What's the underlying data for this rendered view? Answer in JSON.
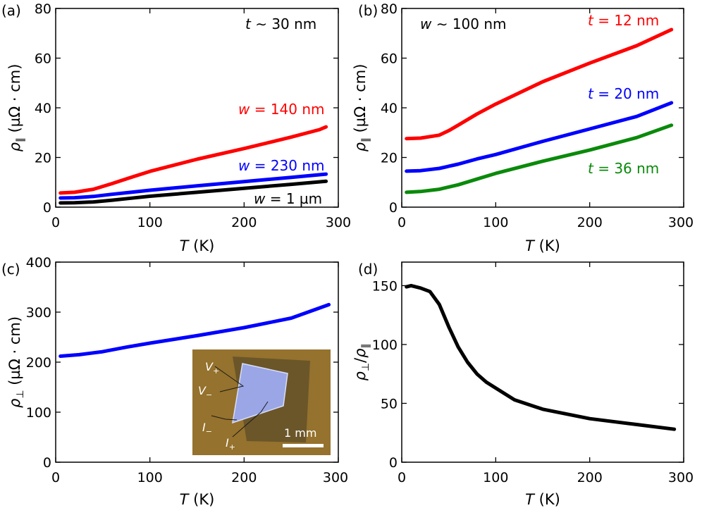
{
  "chart_data": [
    {
      "panel": "(a)",
      "type": "line",
      "annotation": [
        "t",
        " ∼ 30 nm"
      ],
      "xlabel": [
        "T",
        " (K)"
      ],
      "ylabel": [
        "ρ",
        "∥",
        " (µΩ · cm)"
      ],
      "xlim": [
        0,
        300
      ],
      "ylim": [
        0,
        80
      ],
      "xticks": [
        "0",
        "100",
        "200",
        "300"
      ],
      "yticks": [
        "0",
        "20",
        "40",
        "60",
        "80"
      ],
      "series": [
        {
          "label": [
            "w",
            " = 140 nm"
          ],
          "color": "#ff0000",
          "x": [
            5,
            20,
            40,
            60,
            80,
            100,
            150,
            200,
            250,
            280,
            287
          ],
          "y": [
            5.7,
            6.0,
            7.2,
            9.5,
            12.0,
            14.4,
            19.3,
            23.6,
            28.2,
            31.2,
            32.3
          ]
        },
        {
          "label": [
            "w",
            " = 230 nm"
          ],
          "color": "#0000ff",
          "x": [
            5,
            20,
            40,
            60,
            80,
            100,
            150,
            200,
            250,
            287
          ],
          "y": [
            3.7,
            3.8,
            4.3,
            5.2,
            6.0,
            6.8,
            8.6,
            10.3,
            12.0,
            13.3
          ]
        },
        {
          "label": [
            "w",
            " = 1 µm"
          ],
          "color": "#000000",
          "x": [
            5,
            20,
            40,
            60,
            80,
            100,
            150,
            200,
            250,
            287
          ],
          "y": [
            1.7,
            1.8,
            2.1,
            2.8,
            3.6,
            4.4,
            6.0,
            7.6,
            9.2,
            10.4
          ]
        }
      ]
    },
    {
      "panel": "(b)",
      "type": "line",
      "annotation": [
        "w",
        " ∼ 100 nm"
      ],
      "xlabel": [
        "T",
        " (K)"
      ],
      "ylabel": [
        "ρ",
        "∥",
        " (µΩ · cm)"
      ],
      "xlim": [
        0,
        300
      ],
      "ylim": [
        0,
        80
      ],
      "xticks": [
        "0",
        "100",
        "200",
        "300"
      ],
      "yticks": [
        "0",
        "20",
        "40",
        "60",
        "80"
      ],
      "series": [
        {
          "label": [
            "t",
            " = 12 nm"
          ],
          "color": "#ff0000",
          "x": [
            5,
            20,
            40,
            50,
            60,
            80,
            100,
            150,
            200,
            250,
            287
          ],
          "y": [
            27.6,
            27.8,
            29.0,
            30.8,
            33.0,
            37.5,
            41.5,
            50.5,
            58.0,
            65.0,
            71.5
          ]
        },
        {
          "label": [
            "t",
            " = 20 nm"
          ],
          "color": "#0000ff",
          "x": [
            5,
            20,
            40,
            60,
            80,
            100,
            150,
            200,
            250,
            287
          ],
          "y": [
            14.5,
            14.7,
            15.6,
            17.3,
            19.4,
            21.2,
            26.5,
            31.5,
            36.5,
            42.0
          ]
        },
        {
          "label": [
            "t",
            " = 36 nm"
          ],
          "color": "#0a8a0a",
          "x": [
            5,
            20,
            40,
            60,
            80,
            100,
            150,
            200,
            250,
            287
          ],
          "y": [
            6.0,
            6.3,
            7.2,
            9.0,
            11.3,
            13.6,
            18.5,
            23.0,
            28.0,
            33.0
          ]
        }
      ]
    },
    {
      "panel": "(c)",
      "type": "line",
      "xlabel": [
        "T",
        " (K)"
      ],
      "ylabel": [
        "ρ",
        "⊥",
        " (µΩ · cm)"
      ],
      "xlim": [
        0,
        300
      ],
      "ylim": [
        0,
        400
      ],
      "xticks": [
        "0",
        "100",
        "200",
        "300"
      ],
      "yticks": [
        "0",
        "100",
        "200",
        "300",
        "400"
      ],
      "series": [
        {
          "color": "#0000ff",
          "x": [
            5,
            25,
            50,
            75,
            100,
            150,
            200,
            250,
            290
          ],
          "y": [
            212,
            215,
            221,
            230,
            238,
            253,
            269,
            288,
            315
          ]
        }
      ],
      "inset": {
        "labels": {
          "v_plus": [
            "V",
            "+"
          ],
          "v_minus": [
            "V",
            "−"
          ],
          "i_minus": [
            "I",
            "−"
          ],
          "i_plus": [
            "I",
            "+"
          ]
        },
        "scale_bar": "1 mm"
      }
    },
    {
      "panel": "(d)",
      "type": "line",
      "xlabel": [
        "T",
        " (K)"
      ],
      "ylabel": [
        "ρ",
        "⊥",
        "/",
        "ρ",
        "∥"
      ],
      "xlim": [
        0,
        300
      ],
      "ylim": [
        0,
        170
      ],
      "xticks": [
        "0",
        "100",
        "200",
        "300"
      ],
      "yticks": [
        "0",
        "50",
        "100",
        "150"
      ],
      "series": [
        {
          "color": "#000000",
          "x": [
            5,
            10,
            20,
            30,
            40,
            50,
            60,
            70,
            80,
            90,
            100,
            120,
            150,
            200,
            250,
            290
          ],
          "y": [
            149,
            150,
            148,
            145,
            134,
            115,
            98,
            85,
            75,
            68,
            63,
            53,
            45,
            37,
            32,
            28
          ]
        }
      ]
    }
  ]
}
